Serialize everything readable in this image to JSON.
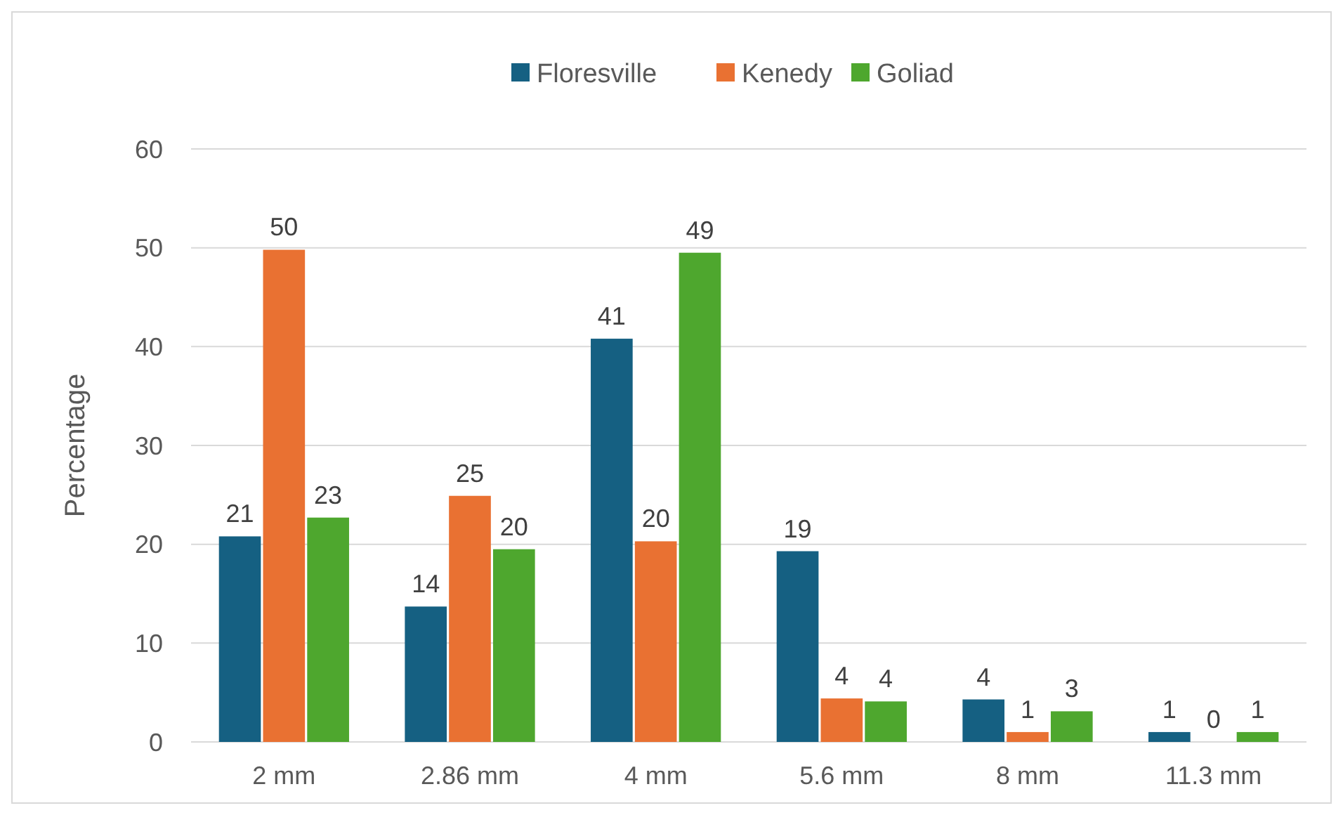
{
  "chart_data": {
    "type": "bar",
    "ylabel": "Percentage",
    "categories": [
      "2 mm",
      "2.86 mm",
      "4 mm",
      "5.6 mm",
      "8 mm",
      "11.3 mm"
    ],
    "series": [
      {
        "name": "Floresville",
        "color": "#156082",
        "values": [
          20.8,
          13.7,
          40.8,
          19.3,
          4.3,
          1.0
        ],
        "value_labels": [
          "21",
          "14",
          "41",
          "19",
          "4",
          "1"
        ]
      },
      {
        "name": "Kenedy",
        "color": "#e97132",
        "values": [
          49.8,
          24.9,
          20.3,
          4.4,
          1.0,
          0
        ],
        "value_labels": [
          "50",
          "25",
          "20",
          "4",
          "1",
          "0"
        ]
      },
      {
        "name": "Goliad",
        "color": "#4ea72e",
        "values": [
          22.7,
          19.5,
          49.5,
          4.1,
          3.1,
          1.0
        ],
        "value_labels": [
          "23",
          "20",
          "49",
          "4",
          "3",
          "1"
        ]
      }
    ],
    "ylim": [
      0,
      60
    ],
    "yticks": [
      0,
      10,
      20,
      30,
      40,
      50,
      60
    ],
    "grid": "y",
    "legend": "top"
  }
}
